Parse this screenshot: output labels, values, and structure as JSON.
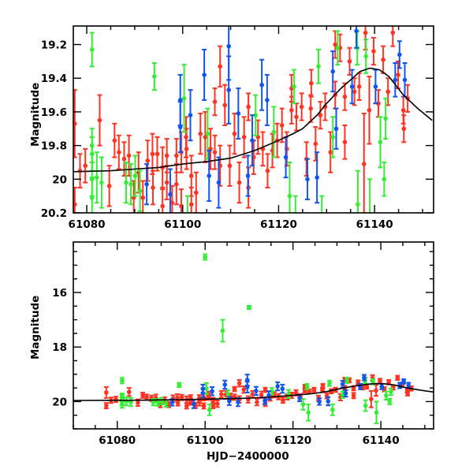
{
  "chart_data": {
    "type": "scatter",
    "title": "",
    "xlabel": "HJD−2400000",
    "ylabel": "Magnitude",
    "colors": {
      "red": "#ff3322",
      "green": "#33ee33",
      "blue": "#1155ee",
      "model": "#000000"
    },
    "panels": [
      {
        "name": "zoomed",
        "xlim": [
          61077.2,
          61152.3
        ],
        "ylim": [
          20.2,
          19.09
        ],
        "xticks": [
          61080,
          61100,
          61120,
          61140
        ],
        "xminor": 5,
        "yticks": [
          19.2,
          19.4,
          19.6,
          19.8,
          20,
          20.2
        ],
        "ytick_labels": [
          "19.2",
          "19.4",
          "19.6",
          "19.8",
          "20",
          "20.2"
        ],
        "yminor": 0.2,
        "xlabel_shown": false
      },
      {
        "name": "full",
        "xlim": [
          61070,
          61152
        ],
        "ylim": [
          21.0,
          14.15
        ],
        "xticks": [
          61080,
          61100,
          61120,
          61140
        ],
        "xminor": 5,
        "yticks": [
          16,
          18,
          20
        ],
        "ytick_labels": [
          "16",
          "18",
          "20"
        ],
        "yminor": 0.5,
        "xlabel_shown": true
      }
    ],
    "model_curve": {
      "x": [
        61070,
        61078,
        61085,
        61090,
        61095,
        61100,
        61105,
        61110,
        61115,
        61120,
        61123,
        61125,
        61128,
        61130,
        61133,
        61135,
        61137,
        61139,
        61141,
        61143,
        61146,
        61149,
        61152
      ],
      "y": [
        19.96,
        19.955,
        19.95,
        19.94,
        19.93,
        19.91,
        19.895,
        19.875,
        19.83,
        19.77,
        19.73,
        19.7,
        19.62,
        19.55,
        19.46,
        19.41,
        19.36,
        19.34,
        19.35,
        19.39,
        19.5,
        19.58,
        19.65
      ]
    },
    "series": [
      {
        "name": "red",
        "points": [
          [
            61077.5,
            19.67,
            0.2
          ],
          [
            61077.5,
            20.15,
            0.1
          ],
          [
            61078.6,
            19.95,
            0.1
          ],
          [
            61079.7,
            19.92,
            0.1
          ],
          [
            61082.7,
            19.65,
            0.15
          ],
          [
            61084.7,
            20.04,
            0.12
          ],
          [
            61085.8,
            19.77,
            0.1
          ],
          [
            61086.7,
            19.84,
            0.1
          ],
          [
            61087.8,
            19.88,
            0.1
          ],
          [
            61088.8,
            19.86,
            0.12
          ],
          [
            61089.8,
            20.11,
            0.1
          ],
          [
            61090.8,
            19.96,
            0.12
          ],
          [
            61091.7,
            20.11,
            0.1
          ],
          [
            61092.7,
            19.89,
            0.12
          ],
          [
            61093.7,
            19.85,
            0.12
          ],
          [
            61093.8,
            20.05,
            0.1
          ],
          [
            61094.7,
            19.85,
            0.1
          ],
          [
            61095.8,
            19.93,
            0.12
          ],
          [
            61095.8,
            20.16,
            0.1
          ],
          [
            61096.7,
            19.86,
            0.1
          ],
          [
            61096.7,
            20.02,
            0.1
          ],
          [
            61097.8,
            20.14,
            0.1
          ],
          [
            61098.7,
            20.03,
            0.12
          ],
          [
            61098.7,
            19.86,
            0.1
          ],
          [
            61099.7,
            19.84,
            0.12
          ],
          [
            61099.7,
            20.16,
            0.1
          ],
          [
            61100.7,
            19.75,
            0.12
          ],
          [
            61100.8,
            19.82,
            0.12
          ],
          [
            61101.8,
            19.98,
            0.12
          ],
          [
            61101.8,
            20.15,
            0.1
          ],
          [
            61102.8,
            20.08,
            0.12
          ],
          [
            61103.7,
            19.73,
            0.12
          ],
          [
            61104.7,
            19.75,
            0.15
          ],
          [
            61105.8,
            19.82,
            0.12
          ],
          [
            61106.7,
            19.54,
            0.08
          ],
          [
            61106.7,
            19.84,
            0.1
          ],
          [
            61107.8,
            19.33,
            0.12
          ],
          [
            61107.8,
            19.92,
            0.12
          ],
          [
            61108.8,
            19.56,
            0.12
          ],
          [
            61109.8,
            19.92,
            0.12
          ],
          [
            61110.8,
            19.73,
            0.12
          ],
          [
            61111.8,
            20.02,
            0.12
          ],
          [
            61112.8,
            19.75,
            0.12
          ],
          [
            61113.7,
            19.57,
            0.08
          ],
          [
            61113.7,
            20.05,
            0.12
          ],
          [
            61114.8,
            19.87,
            0.1
          ],
          [
            61115.7,
            19.75,
            0.1
          ],
          [
            61116.7,
            19.82,
            0.1
          ],
          [
            61117.7,
            19.95,
            0.1
          ],
          [
            61118.7,
            19.83,
            0.1
          ],
          [
            61119.7,
            19.77,
            0.1
          ],
          [
            61120.7,
            19.68,
            0.1
          ],
          [
            61121.7,
            19.82,
            0.1
          ],
          [
            61122.7,
            19.46,
            0.08
          ],
          [
            61122.7,
            19.59,
            0.08
          ],
          [
            61123.7,
            19.63,
            0.08
          ],
          [
            61124.8,
            19.57,
            0.08
          ],
          [
            61125.8,
            19.88,
            0.1
          ],
          [
            61126.7,
            19.58,
            0.08
          ],
          [
            61126.8,
            19.43,
            0.08
          ],
          [
            61127.7,
            19.79,
            0.1
          ],
          [
            61128.7,
            19.62,
            0.08
          ],
          [
            61129.7,
            19.57,
            0.08
          ],
          [
            61130.8,
            19.84,
            0.12
          ],
          [
            61131.8,
            19.2,
            0.08
          ],
          [
            61131.8,
            19.5,
            0.08
          ],
          [
            61132.8,
            19.22,
            0.08
          ],
          [
            61133.8,
            19.78,
            0.1
          ],
          [
            61133.8,
            19.51,
            0.08
          ],
          [
            61134.8,
            19.3,
            0.08
          ],
          [
            61135.8,
            19.48,
            0.08
          ],
          [
            61136.8,
            19.45,
            0.08
          ],
          [
            61137.8,
            19.91,
            0.3
          ],
          [
            61138.1,
            19.13,
            0.1
          ],
          [
            61138.9,
            19.59,
            0.2
          ],
          [
            61139.8,
            19.24,
            0.08
          ],
          [
            61140.8,
            19.55,
            0.08
          ],
          [
            61141.8,
            19.29,
            0.08
          ],
          [
            61142.8,
            19.48,
            0.08
          ],
          [
            61143.8,
            19.13,
            0.08
          ],
          [
            61144.9,
            19.38,
            0.08
          ],
          [
            61146.0,
            19.59,
            0.08
          ],
          [
            61146.1,
            19.7,
            0.08
          ],
          [
            61146.9,
            19.52,
            0.08
          ]
        ]
      },
      {
        "name": "green",
        "points": [
          [
            61081.1,
            19.23,
            0.1
          ],
          [
            61081.1,
            19.8,
            0.1
          ],
          [
            61081.1,
            19.85,
            0.1
          ],
          [
            61081.1,
            20.0,
            0.1
          ],
          [
            61081.1,
            20.11,
            0.12
          ],
          [
            61082.1,
            19.99,
            0.15
          ],
          [
            61083.1,
            20.02,
            0.15
          ],
          [
            61094.1,
            19.39,
            0.08
          ],
          [
            61088.2,
            20.02,
            0.12
          ],
          [
            61089.2,
            20.03,
            0.12
          ],
          [
            61090.1,
            19.98,
            0.12
          ],
          [
            61091.1,
            20.07,
            0.12
          ],
          [
            61100.3,
            19.52,
            0.2
          ],
          [
            61105.2,
            19.73,
            0.15
          ],
          [
            61115.2,
            19.62,
            0.12
          ],
          [
            61119.0,
            19.72,
            0.15
          ],
          [
            61122.3,
            20.1,
            0.2
          ],
          [
            61123.2,
            19.45,
            0.1
          ],
          [
            61128.3,
            19.33,
            0.1
          ],
          [
            61131.3,
            19.75,
            0.12
          ],
          [
            61132.3,
            19.22,
            0.1
          ],
          [
            61136.5,
            20.15,
            0.2
          ],
          [
            61136.4,
            19.22,
            0.1
          ],
          [
            61141.2,
            19.78,
            0.15
          ],
          [
            61142.3,
            19.64,
            0.12
          ],
          [
            61138.2,
            19.27,
            0.1
          ],
          [
            61100.0,
            14.7,
            0.1
          ],
          [
            61104.0,
            17.4,
            0.4
          ],
          [
            61110.0,
            16.55,
            0.06
          ],
          [
            61101.0,
            20.3,
            0.2
          ],
          [
            61123.5,
            20.4,
            0.3
          ],
          [
            61129.0,
            20.3,
            0.2
          ],
          [
            61139.0,
            20.4,
            0.4
          ],
          [
            61142.0,
            20.0,
            0.1
          ]
        ]
      },
      {
        "name": "blue",
        "points": [
          [
            61092.5,
            20.03,
            0.12
          ],
          [
            61097.4,
            20.09,
            0.15
          ],
          [
            61099.5,
            19.53,
            0.15
          ],
          [
            61099.5,
            19.69,
            0.15
          ],
          [
            61101.6,
            19.62,
            0.15
          ],
          [
            61104.5,
            19.38,
            0.15
          ],
          [
            61105.5,
            19.98,
            0.15
          ],
          [
            61107.5,
            20.02,
            0.15
          ],
          [
            61109.6,
            19.21,
            0.2
          ],
          [
            61109.6,
            19.47,
            0.2
          ],
          [
            61111.6,
            19.61,
            0.15
          ],
          [
            61113.6,
            19.98,
            0.12
          ],
          [
            61114.5,
            19.77,
            0.15
          ],
          [
            61116.5,
            19.44,
            0.15
          ],
          [
            61117.6,
            19.53,
            0.15
          ],
          [
            61121.5,
            19.87,
            0.12
          ],
          [
            61126.0,
            20.0,
            0.12
          ],
          [
            61128.0,
            19.99,
            0.15
          ],
          [
            61131.3,
            19.36,
            0.12
          ],
          [
            61132.0,
            19.7,
            0.12
          ],
          [
            61136.2,
            19.12,
            0.1
          ],
          [
            61135.3,
            19.45,
            0.1
          ],
          [
            61140.2,
            19.45,
            0.1
          ],
          [
            61144.3,
            19.41,
            0.1
          ],
          [
            61145.2,
            19.26,
            0.08
          ],
          [
            61146.3,
            19.41,
            0.1
          ]
        ]
      }
    ]
  }
}
